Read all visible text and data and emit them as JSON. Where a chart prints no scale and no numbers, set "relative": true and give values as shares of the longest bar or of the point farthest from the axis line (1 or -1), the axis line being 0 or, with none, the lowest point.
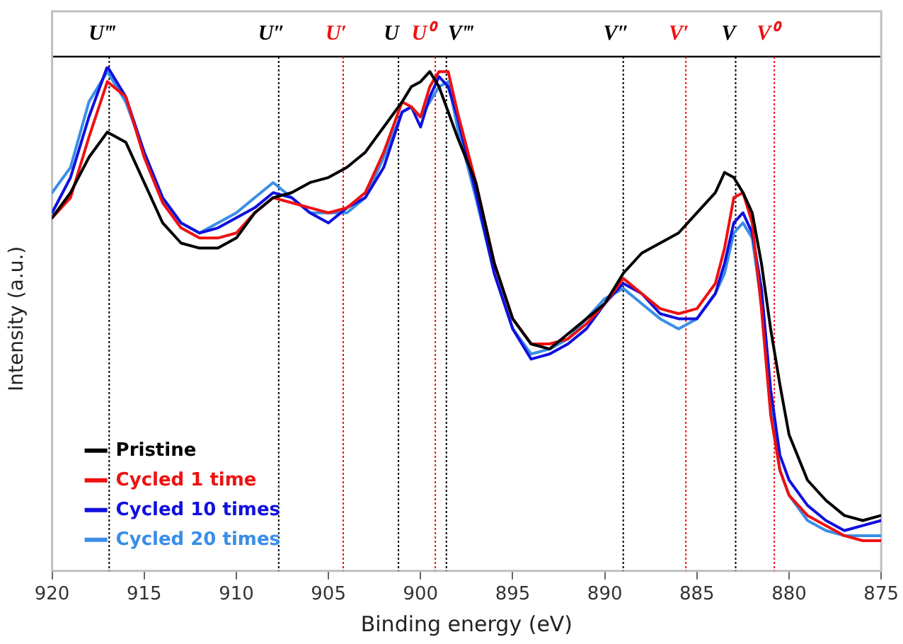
{
  "chart_data": {
    "type": "line",
    "relative": true,
    "xlabel": "Binding energy (eV)",
    "ylabel": "Intensity (a.u.)",
    "x": [
      920,
      919,
      918,
      917,
      916,
      915,
      914,
      913,
      912,
      911,
      910,
      909,
      908,
      907,
      906,
      905,
      904,
      903,
      902,
      901,
      900.5,
      900,
      899.5,
      899,
      898.5,
      898,
      897,
      896,
      895,
      894,
      893,
      892,
      891,
      890,
      889,
      888,
      887,
      886,
      885,
      884,
      883.5,
      883,
      882.5,
      882,
      881.5,
      881,
      880.5,
      880,
      879,
      878,
      877,
      876,
      875
    ],
    "xlim": [
      920,
      875
    ],
    "xticks": [
      920,
      915,
      910,
      905,
      900,
      895,
      890,
      885,
      880,
      875
    ],
    "grid": false,
    "legend": "bottom left",
    "marker": "none",
    "line_style": "solid",
    "series": [
      {
        "name": "Pristine",
        "color": "#000000",
        "values": [
          0.7,
          0.75,
          0.82,
          0.87,
          0.85,
          0.77,
          0.69,
          0.65,
          0.64,
          0.64,
          0.66,
          0.71,
          0.74,
          0.75,
          0.77,
          0.78,
          0.8,
          0.83,
          0.88,
          0.93,
          0.96,
          0.97,
          0.99,
          0.96,
          0.91,
          0.86,
          0.77,
          0.61,
          0.5,
          0.45,
          0.44,
          0.47,
          0.5,
          0.53,
          0.59,
          0.63,
          0.65,
          0.67,
          0.71,
          0.75,
          0.79,
          0.78,
          0.75,
          0.71,
          0.61,
          0.48,
          0.37,
          0.27,
          0.18,
          0.14,
          0.11,
          0.1,
          0.11
        ]
      },
      {
        "name": "Cycled 1 time",
        "color": "#ee1111",
        "values": [
          0.7,
          0.74,
          0.86,
          0.97,
          0.94,
          0.82,
          0.73,
          0.68,
          0.66,
          0.66,
          0.67,
          0.71,
          0.74,
          0.73,
          0.72,
          0.71,
          0.72,
          0.75,
          0.83,
          0.93,
          0.92,
          0.9,
          0.96,
          0.99,
          0.99,
          0.91,
          0.77,
          0.61,
          0.5,
          0.45,
          0.45,
          0.46,
          0.49,
          0.53,
          0.58,
          0.55,
          0.52,
          0.51,
          0.52,
          0.57,
          0.64,
          0.74,
          0.75,
          0.69,
          0.52,
          0.31,
          0.2,
          0.15,
          0.11,
          0.09,
          0.07,
          0.06,
          0.06
        ]
      },
      {
        "name": "Cycled 10 times",
        "color": "#1010dd",
        "values": [
          0.71,
          0.78,
          0.9,
          1,
          0.94,
          0.83,
          0.74,
          0.69,
          0.67,
          0.68,
          0.7,
          0.72,
          0.75,
          0.74,
          0.71,
          0.69,
          0.72,
          0.74,
          0.8,
          0.91,
          0.92,
          0.88,
          0.94,
          0.98,
          0.96,
          0.9,
          0.75,
          0.59,
          0.48,
          0.42,
          0.43,
          0.45,
          0.48,
          0.53,
          0.57,
          0.55,
          0.51,
          0.5,
          0.5,
          0.55,
          0.61,
          0.69,
          0.71,
          0.67,
          0.56,
          0.36,
          0.23,
          0.18,
          0.13,
          0.1,
          0.08,
          0.09,
          0.1
        ]
      },
      {
        "name": "Cycled 20 times",
        "color": "#3a8ee8",
        "values": [
          0.75,
          0.8,
          0.93,
          0.99,
          0.93,
          0.83,
          0.74,
          0.69,
          0.67,
          0.69,
          0.71,
          0.74,
          0.77,
          0.74,
          0.71,
          0.71,
          0.71,
          0.74,
          0.82,
          0.91,
          0.92,
          0.9,
          0.93,
          0.96,
          0.97,
          0.88,
          0.74,
          0.59,
          0.48,
          0.43,
          0.44,
          0.46,
          0.5,
          0.54,
          0.56,
          0.53,
          0.5,
          0.48,
          0.5,
          0.55,
          0.59,
          0.67,
          0.69,
          0.66,
          0.53,
          0.33,
          0.2,
          0.15,
          0.1,
          0.08,
          0.07,
          0.07,
          0.07
        ]
      }
    ],
    "ref_lines": [
      {
        "axis": "x",
        "value": 916.9,
        "label": "U‴",
        "color": "#000000",
        "line_style": "dotted"
      },
      {
        "axis": "x",
        "value": 907.7,
        "label": "U″",
        "color": "#000000",
        "line_style": "dotted"
      },
      {
        "axis": "x",
        "value": 904.2,
        "label": "U′",
        "color": "#ee1111",
        "line_style": "dotted"
      },
      {
        "axis": "x",
        "value": 901.2,
        "label": "U",
        "color": "#000000",
        "line_style": "dotted"
      },
      {
        "axis": "x",
        "value": 899.2,
        "label": "U⁰",
        "color": "#ee1111",
        "line_style": "dotted"
      },
      {
        "axis": "x",
        "value": 898.6,
        "label": "V‴",
        "color": "#000000",
        "line_style": "dotted"
      },
      {
        "axis": "x",
        "value": 889.0,
        "label": "V″",
        "color": "#000000",
        "line_style": "dotted"
      },
      {
        "axis": "x",
        "value": 885.6,
        "label": "V′",
        "color": "#ee1111",
        "line_style": "dotted"
      },
      {
        "axis": "x",
        "value": 882.9,
        "label": "V",
        "color": "#000000",
        "line_style": "dotted"
      },
      {
        "axis": "x",
        "value": 880.8,
        "label": "V⁰",
        "color": "#ee1111",
        "line_style": "dotted"
      }
    ]
  }
}
